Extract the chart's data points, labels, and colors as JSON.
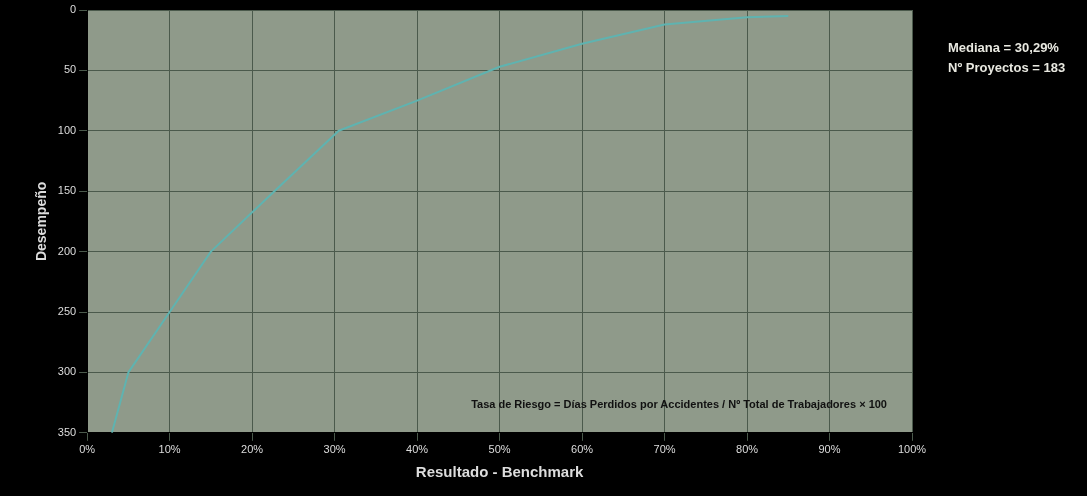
{
  "chart_data": {
    "type": "line",
    "xlabel": "Resultado - Benchmark",
    "ylabel": "Desempeño",
    "x": [
      3,
      5,
      10,
      15,
      22.7,
      30.5,
      40,
      50,
      60,
      70,
      80,
      85
    ],
    "series": [
      {
        "color": "#5fb3b0",
        "values": [
          350,
          300,
          250,
          200,
          150,
          100,
          75,
          47,
          28,
          12,
          6,
          5
        ]
      }
    ],
    "xlim": [
      0,
      100
    ],
    "xticks": [
      {
        "value": 0,
        "label": "0%"
      },
      {
        "value": 10,
        "label": "10%"
      },
      {
        "value": 20,
        "label": "20%"
      },
      {
        "value": 30,
        "label": "30%"
      },
      {
        "value": 40,
        "label": "40%"
      },
      {
        "value": 50,
        "label": "50%"
      },
      {
        "value": 60,
        "label": "60%"
      },
      {
        "value": 70,
        "label": "70%"
      },
      {
        "value": 80,
        "label": "80%"
      },
      {
        "value": 90,
        "label": "90%"
      },
      {
        "value": 100,
        "label": "100%"
      }
    ],
    "ylim": [
      350,
      0
    ],
    "yticks": [
      0,
      50,
      100,
      150,
      200,
      250,
      300,
      350
    ],
    "grid": true,
    "marker": "none",
    "line_style": "solid",
    "annotations": [
      "Mediana = 30,29%",
      "Nº Proyectos = 183",
      "Tasa de Riesgo = Días Perdidos por Accidentes / Nº Total de Trabajadores × 100"
    ]
  }
}
